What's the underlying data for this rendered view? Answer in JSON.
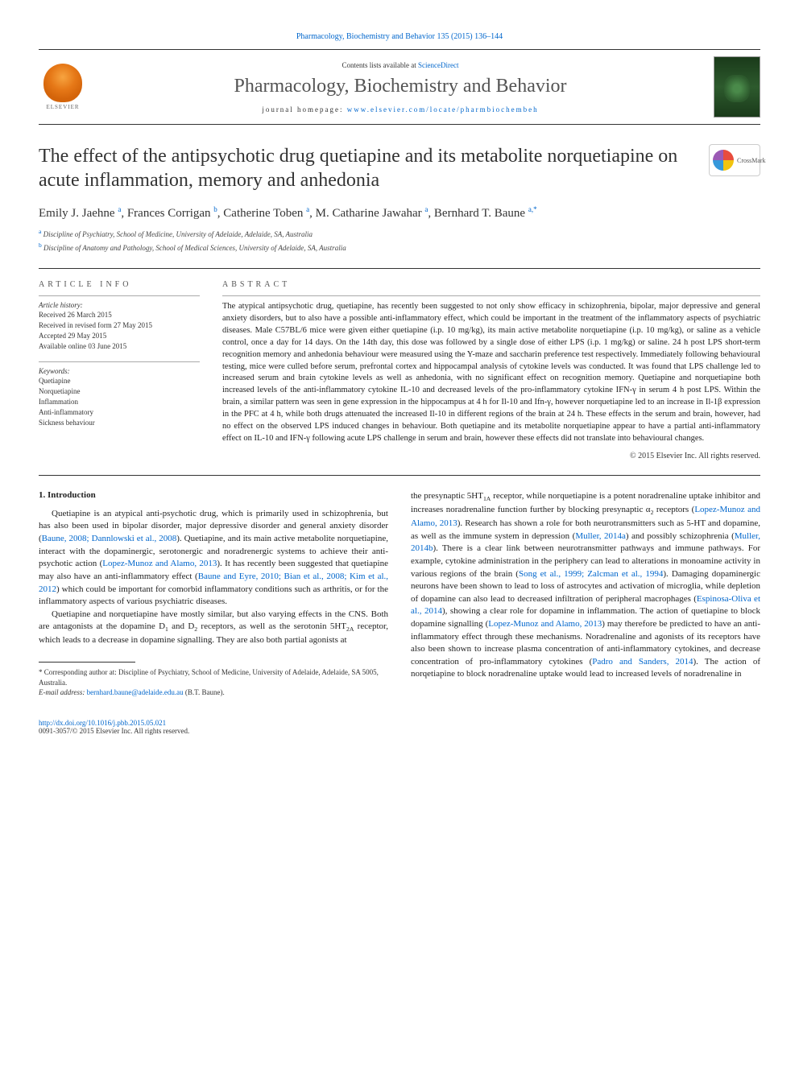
{
  "header": {
    "citation_link": "Pharmacology, Biochemistry and Behavior 135 (2015) 136–144",
    "contents_prefix": "Contents lists available at ",
    "contents_link": "ScienceDirect",
    "journal_name": "Pharmacology, Biochemistry and Behavior",
    "homepage_prefix": "journal homepage: ",
    "homepage_link": "www.elsevier.com/locate/pharmbiochembeh",
    "elsevier_label": "ELSEVIER"
  },
  "article": {
    "title": "The effect of the antipsychotic drug quetiapine and its metabolite norquetiapine on acute inflammation, memory and anhedonia",
    "crossmark_label": "CrossMark",
    "authors_html": "Emily J. Jaehne <sup>a</sup>, Frances Corrigan <sup>b</sup>, Catherine Toben <sup>a</sup>, M. Catharine Jawahar <sup>a</sup>, Bernhard T. Baune <sup>a,*</sup>",
    "affiliations": [
      {
        "sup": "a",
        "text": "Discipline of Psychiatry, School of Medicine, University of Adelaide, Adelaide, SA, Australia"
      },
      {
        "sup": "b",
        "text": "Discipline of Anatomy and Pathology, School of Medical Sciences, University of Adelaide, SA, Australia"
      }
    ]
  },
  "article_info": {
    "heading": "article info",
    "history_label": "Article history:",
    "history": [
      "Received 26 March 2015",
      "Received in revised form 27 May 2015",
      "Accepted 29 May 2015",
      "Available online 03 June 2015"
    ],
    "keywords_label": "Keywords:",
    "keywords": [
      "Quetiapine",
      "Norquetiapine",
      "Inflammation",
      "Anti-inflammatory",
      "Sickness behaviour"
    ]
  },
  "abstract": {
    "heading": "abstract",
    "text": "The atypical antipsychotic drug, quetiapine, has recently been suggested to not only show efficacy in schizophrenia, bipolar, major depressive and general anxiety disorders, but to also have a possible anti-inflammatory effect, which could be important in the treatment of the inflammatory aspects of psychiatric diseases. Male C57BL/6 mice were given either quetiapine (i.p. 10 mg/kg), its main active metabolite norquetiapine (i.p. 10 mg/kg), or saline as a vehicle control, once a day for 14 days. On the 14th day, this dose was followed by a single dose of either LPS (i.p. 1 mg/kg) or saline. 24 h post LPS short-term recognition memory and anhedonia behaviour were measured using the Y-maze and saccharin preference test respectively. Immediately following behavioural testing, mice were culled before serum, prefrontal cortex and hippocampal analysis of cytokine levels was conducted. It was found that LPS challenge led to increased serum and brain cytokine levels as well as anhedonia, with no significant effect on recognition memory. Quetiapine and norquetiapine both increased levels of the anti-inflammatory cytokine IL-10 and decreased levels of the pro-inflammatory cytokine IFN-γ in serum 4 h post LPS. Within the brain, a similar pattern was seen in gene expression in the hippocampus at 4 h for Il-10 and Ifn-γ, however norquetiapine led to an increase in Il-1β expression in the PFC at 4 h, while both drugs attenuated the increased Il-10 in different regions of the brain at 24 h. These effects in the serum and brain, however, had no effect on the observed LPS induced changes in behaviour. Both quetiapine and its metabolite norquetiapine appear to have a partial anti-inflammatory effect on IL-10 and IFN-γ following acute LPS challenge in serum and brain, however these effects did not translate into behavioural changes.",
    "copyright": "© 2015 Elsevier Inc. All rights reserved."
  },
  "body": {
    "section_number": "1.",
    "section_title": "Introduction",
    "left_paragraphs": [
      "Quetiapine is an atypical anti-psychotic drug, which is primarily used in schizophrenia, but has also been used in bipolar disorder, major depressive disorder and general anxiety disorder (<a>Baune, 2008; Dannlowski et al., 2008</a>). Quetiapine, and its main active metabolite norquetiapine, interact with the dopaminergic, serotonergic and noradrenergic systems to achieve their anti-psychotic action (<a>Lopez-Munoz and Alamo, 2013</a>). It has recently been suggested that quetiapine may also have an anti-inflammatory effect (<a>Baune and Eyre, 2010; Bian et al., 2008; Kim et al., 2012</a>) which could be important for comorbid inflammatory conditions such as arthritis, or for the inflammatory aspects of various psychiatric diseases.",
      "Quetiapine and norquetiapine have mostly similar, but also varying effects in the CNS. Both are antagonists at the dopamine D<sub>1</sub> and D<sub>2</sub> receptors, as well as the serotonin 5HT<sub>2A</sub> receptor, which leads to a decrease in dopamine signalling. They are also both partial agonists at"
    ],
    "right_paragraphs": [
      "the presynaptic 5HT<sub>1A</sub> receptor, while norquetiapine is a potent noradrenaline uptake inhibitor and increases noradrenaline function further by blocking presynaptic α<sub>2</sub> receptors (<a>Lopez-Munoz and Alamo, 2013</a>). Research has shown a role for both neurotransmitters such as 5-HT and dopamine, as well as the immune system in depression (<a>Muller, 2014a</a>) and possibly schizophrenia (<a>Muller, 2014b</a>). There is a clear link between neurotransmitter pathways and immune pathways. For example, cytokine administration in the periphery can lead to alterations in monoamine activity in various regions of the brain (<a>Song et al., 1999; Zalcman et al., 1994</a>). Damaging dopaminergic neurons have been shown to lead to loss of astrocytes and activation of microglia, while depletion of dopamine can also lead to decreased infiltration of peripheral macrophages (<a>Espinosa-Oliva et al., 2014</a>), showing a clear role for dopamine in inflammation. The action of quetiapine to block dopamine signalling (<a>Lopez-Munoz and Alamo, 2013</a>) may therefore be predicted to have an anti-inflammatory effect through these mechanisms. Noradrenaline and agonists of its receptors have also been shown to increase plasma concentration of anti-inflammatory cytokines, and decrease concentration of pro-inflammatory cytokines (<a>Padro and Sanders, 2014</a>). The action of norqetiapine to block noradrenaline uptake would lead to increased levels of noradrenaline in"
    ]
  },
  "footnote": {
    "corr_label": "*",
    "corr_text": "Corresponding author at: Discipline of Psychiatry, School of Medicine, University of Adelaide, Adelaide, SA 5005, Australia.",
    "email_label": "E-mail address:",
    "email": "bernhard.baune@adelaide.edu.au",
    "email_suffix": "(B.T. Baune)."
  },
  "footer": {
    "doi": "http://dx.doi.org/10.1016/j.pbb.2015.05.021",
    "issn_line": "0091-3057/© 2015 Elsevier Inc. All rights reserved."
  },
  "colors": {
    "link": "#0066cc",
    "text": "#222222",
    "rule": "#333333"
  }
}
